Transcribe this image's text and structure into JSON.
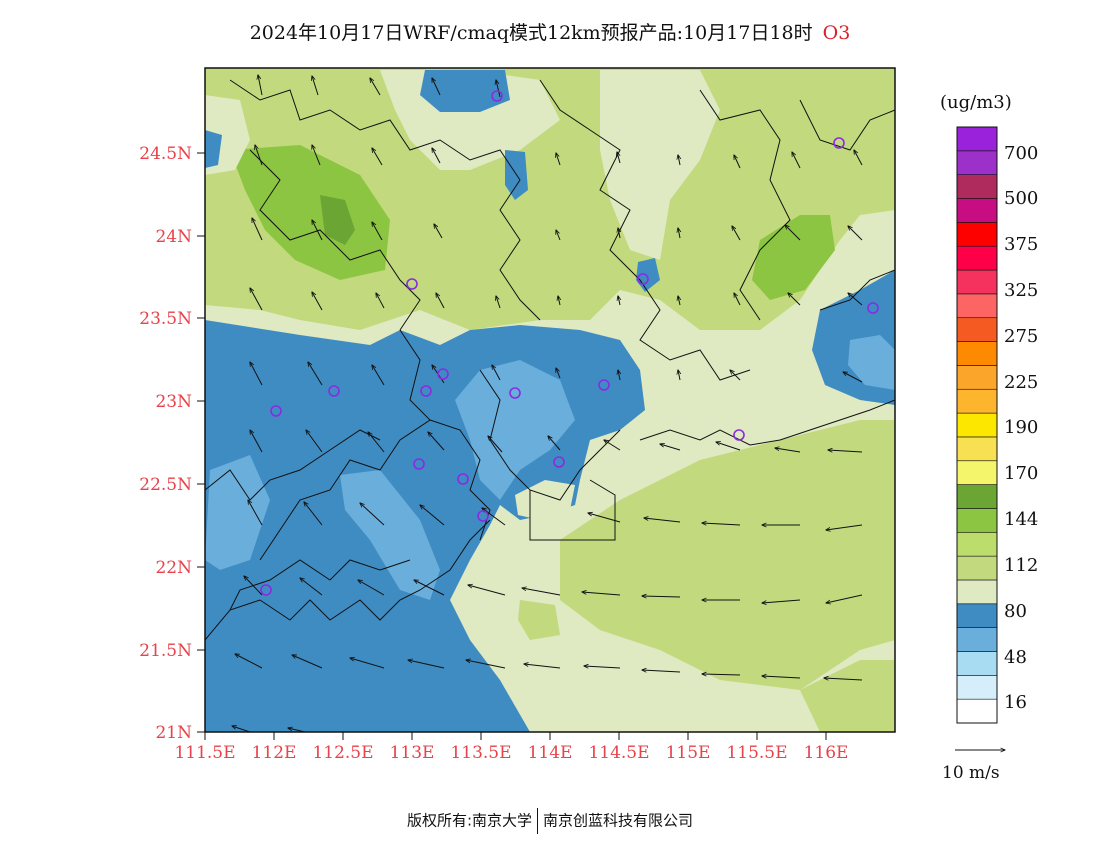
{
  "title": {
    "main": "2024年10月17日WRF/cmaq模式12km预报产品:10月17日18时",
    "species": "O3"
  },
  "footer": {
    "left": "版权所有:南京大学",
    "right": "南京创蓝科技有限公司"
  },
  "axes": {
    "lon_ticks": [
      "111.5E",
      "112E",
      "112.5E",
      "113E",
      "113.5E",
      "114E",
      "114.5E",
      "115E",
      "115.5E",
      "116E"
    ],
    "lat_ticks": [
      "24.5N",
      "24N",
      "23.5N",
      "23N",
      "22.5N",
      "22N",
      "21.5N",
      "21N"
    ],
    "tick_color": "#e8424a"
  },
  "legend": {
    "unit": "(ug/m3)",
    "labels": [
      "700",
      "500",
      "375",
      "325",
      "275",
      "225",
      "190",
      "170",
      "144",
      "112",
      "80",
      "48",
      "16"
    ],
    "colors": [
      "#ffffff",
      "#d6eef9",
      "#a8dcf2",
      "#6aaedc",
      "#3f8cc3",
      "#dfe9c2",
      "#c2d97e",
      "#bcdc6c",
      "#8cc542",
      "#6ba534",
      "#f4f56a",
      "#f7e052",
      "#fbe700",
      "#fdb52e",
      "#fba52a",
      "#fd8a00",
      "#f55a23",
      "#fd6565",
      "#f5325e",
      "#fd0047",
      "#fd0000",
      "#c80c81",
      "#af2a5d",
      "#9c30c8",
      "#9a22da"
    ]
  },
  "wind_key": {
    "label": "10 m/s"
  },
  "colors": {
    "low_blue": "#3f8cc3",
    "light_blue": "#6aaedc",
    "pale_green": "#dfe9c2",
    "green": "#c2d97e",
    "mid_green": "#8cc542",
    "dark_green": "#6ba534",
    "station_marker": "#8a2be2"
  }
}
